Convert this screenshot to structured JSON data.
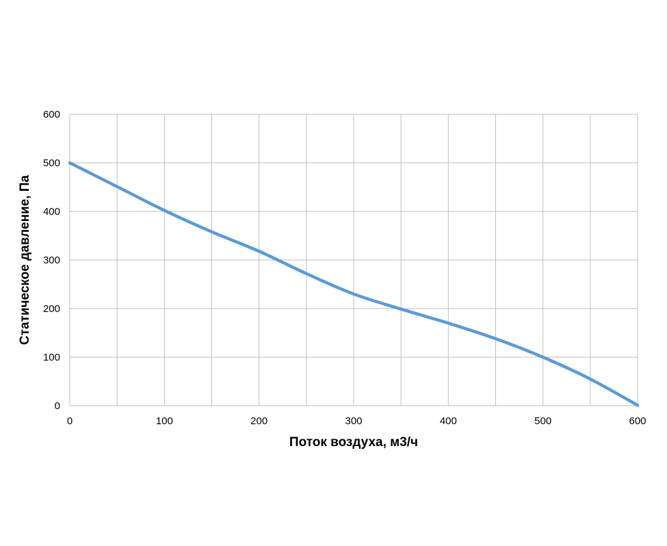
{
  "chart_data": {
    "type": "line",
    "title": "",
    "xlabel": "Поток воздуха, м3/ч",
    "ylabel": "Статическое давление, Па",
    "xlim": [
      0,
      600
    ],
    "ylim": [
      0,
      600
    ],
    "x_ticks": [
      0,
      100,
      200,
      300,
      400,
      500,
      600
    ],
    "y_ticks": [
      0,
      100,
      200,
      300,
      400,
      500,
      600
    ],
    "x_grid_step": 50,
    "y_grid_step": 100,
    "grid": true,
    "legend": "none",
    "series": [
      {
        "color": "#5b9bd5",
        "x": [
          0,
          50,
          100,
          150,
          200,
          250,
          300,
          350,
          400,
          450,
          500,
          550,
          600
        ],
        "y": [
          500,
          451,
          402,
          358,
          318,
          272,
          230,
          199,
          170,
          138,
          100,
          55,
          1
        ]
      }
    ]
  }
}
